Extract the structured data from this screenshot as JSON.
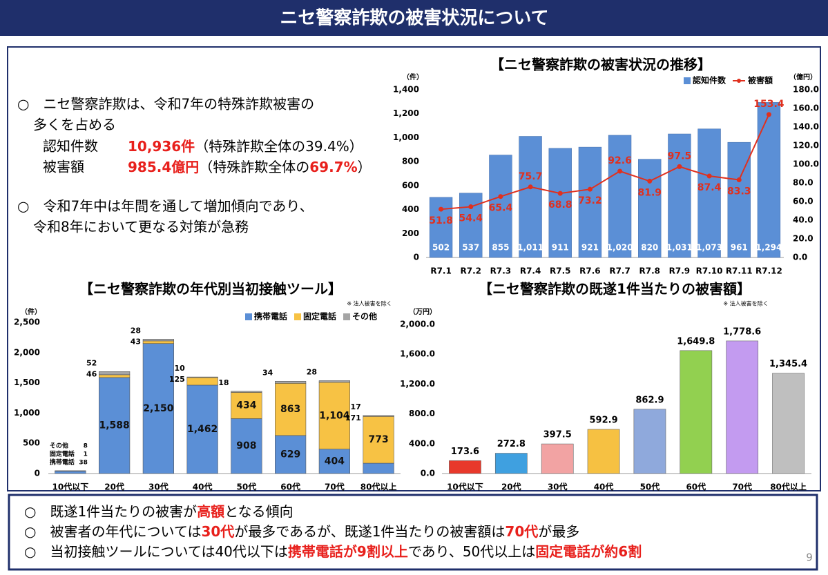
{
  "header": {
    "title": "ニセ警察詐欺の被害状況について"
  },
  "intro": {
    "bullets": [
      [
        "○　ニセ警察詐欺は、令和7年の特殊詐欺被害の",
        "多くを占める"
      ],
      [
        "○　令和7年中は年間を通して増加傾向であり、",
        "令和8年において更なる対策が急務"
      ]
    ],
    "details": [
      {
        "label": "認知件数",
        "runs": [
          {
            "text": "10,936件",
            "color": "#e8201c"
          },
          {
            "text": "（特殊詐欺全体の39.4%）"
          }
        ]
      },
      {
        "label": "被害額",
        "runs": [
          {
            "text": "985.4億円",
            "color": "#e8201c"
          },
          {
            "text": "（特殊詐欺全体の"
          },
          {
            "text": "69.7%",
            "color": "#e8201c"
          },
          {
            "text": "）"
          }
        ]
      }
    ]
  },
  "chart_data": [
    {
      "type": "bar",
      "title": "【ニセ警察詐欺の被害状況の推移】",
      "y_unit": "（件）",
      "y2_unit": "（億円）",
      "categories": [
        "R7.1",
        "R7.2",
        "R7.3",
        "R7.4",
        "R7.5",
        "R7.6",
        "R7.7",
        "R7.8",
        "R7.9",
        "R7.10",
        "R7.11",
        "R7.12"
      ],
      "series": [
        {
          "name": "認知件数",
          "color": "#5b8fd6",
          "values": [
            502,
            537,
            855,
            1011,
            911,
            921,
            1020,
            820,
            1031,
            1073,
            961,
            1294
          ],
          "value_labels": [
            "502",
            "537",
            "855",
            "1,011",
            "911",
            "921",
            "1,020",
            "820",
            "1,031",
            "1,073",
            "961",
            "1,294"
          ]
        },
        {
          "name": "被害額",
          "type": "line",
          "axis": "y2",
          "color": "#e0301e",
          "values": [
            51.8,
            54.4,
            65.4,
            75.7,
            68.8,
            73.2,
            92.6,
            81.9,
            97.5,
            87.4,
            83.3,
            153.4
          ]
        }
      ],
      "ylim": [
        0,
        1400
      ],
      "yticks": [
        0,
        200,
        400,
        600,
        800,
        {
          "value": 1000,
          "label": "1,000"
        },
        {
          "value": 1200,
          "label": "1,200"
        },
        {
          "value": 1400,
          "label": "1,400"
        }
      ],
      "y2lim": [
        0,
        180
      ],
      "y2ticks": [
        {
          "value": 0,
          "label": "0.0"
        },
        {
          "value": 20,
          "label": "20.0"
        },
        {
          "value": 40,
          "label": "40.0"
        },
        {
          "value": 60,
          "label": "60.0"
        },
        {
          "value": 80,
          "label": "80.0"
        },
        {
          "value": 100,
          "label": "100.0"
        },
        {
          "value": 120,
          "label": "120.0"
        },
        {
          "value": 140,
          "label": "140.0"
        },
        {
          "value": 160,
          "label": "160.0"
        },
        {
          "value": 180,
          "label": "180.0"
        }
      ],
      "grid": false,
      "legend": "top-right"
    },
    {
      "type": "bar",
      "stacked": true,
      "title": "【ニセ警察詐欺の年代別当初接触ツール】",
      "note": "※ 法人被害を除く",
      "y_unit": "（件）",
      "categories": [
        "10代以下",
        "20代",
        "30代",
        "40代",
        "50代",
        "60代",
        "70代",
        "80代以上"
      ],
      "series": [
        {
          "name": "携帯電話",
          "color": "#5b8fd6",
          "values": [
            38,
            1588,
            2150,
            1462,
            908,
            629,
            404,
            171
          ],
          "value_labels": [
            "38",
            "1,588",
            "2,150",
            "1,462",
            "908",
            "629",
            "404",
            "171"
          ]
        },
        {
          "name": "固定電話",
          "color": "#f7c244",
          "values": [
            1,
            46,
            43,
            125,
            434,
            863,
            1104,
            773
          ],
          "value_labels": [
            "1",
            "46",
            "43",
            "125",
            "434",
            "863",
            "1,104",
            "773"
          ]
        },
        {
          "name": "その他",
          "color": "#a5a5a5",
          "values": [
            8,
            52,
            28,
            10,
            18,
            34,
            28,
            17
          ]
        }
      ],
      "ylim": [
        0,
        2500
      ],
      "yticks": [
        0,
        500,
        {
          "value": 1000,
          "label": "1,000"
        },
        {
          "value": 1500,
          "label": "1,500"
        },
        {
          "value": 2000,
          "label": "2,000"
        },
        {
          "value": 2500,
          "label": "2,500"
        }
      ],
      "grid": false,
      "legend": "top-right"
    },
    {
      "type": "bar",
      "title": "【ニセ警察詐欺の既遂1件当たりの被害額】",
      "note": "※ 法人被害を除く",
      "y_unit": "（万円）",
      "categories": [
        "10代以下",
        "20代",
        "30代",
        "40代",
        "50代",
        "60代",
        "70代",
        "80代以上"
      ],
      "values": [
        173.6,
        272.8,
        397.5,
        592.9,
        862.9,
        1649.8,
        1778.6,
        1345.4
      ],
      "value_labels": [
        "173.6",
        "272.8",
        "397.5",
        "592.9",
        "862.9",
        "1,649.8",
        "1,778.6",
        "1,345.4"
      ],
      "colors": [
        "#e8392b",
        "#3fa0e0",
        "#f2a3a3",
        "#f6c142",
        "#8fa9dc",
        "#92d050",
        "#c39bf0",
        "#bfbfbf"
      ],
      "ylim": [
        0,
        2000
      ],
      "yticks": [
        {
          "value": 0,
          "label": "0.0"
        },
        {
          "value": 400,
          "label": "400.0"
        },
        {
          "value": 800,
          "label": "800.0"
        },
        {
          "value": 1200,
          "label": "1,200.0"
        },
        {
          "value": 1600,
          "label": "1,600.0"
        },
        {
          "value": 2000,
          "label": "2,000.0"
        }
      ],
      "grid": false
    }
  ],
  "summary": {
    "lines": [
      [
        {
          "text": "○　既遂1件当たりの被害が"
        },
        {
          "text": "高額",
          "color": "#e8201c"
        },
        {
          "text": "となる傾向"
        }
      ],
      [
        {
          "text": "○　被害者の年代については"
        },
        {
          "text": "30代",
          "color": "#e8201c"
        },
        {
          "text": "が最多であるが、既遂1件当たりの被害額は"
        },
        {
          "text": "70代",
          "color": "#e8201c"
        },
        {
          "text": "が最多"
        }
      ],
      [
        {
          "text": "○　当初接触ツールについては40代以下は"
        },
        {
          "text": "携帯電話が9割以上",
          "color": "#e8201c"
        },
        {
          "text": "であり、50代以上は"
        },
        {
          "text": "固定電話が約6割",
          "color": "#e8201c"
        }
      ]
    ]
  },
  "page_number": "9"
}
